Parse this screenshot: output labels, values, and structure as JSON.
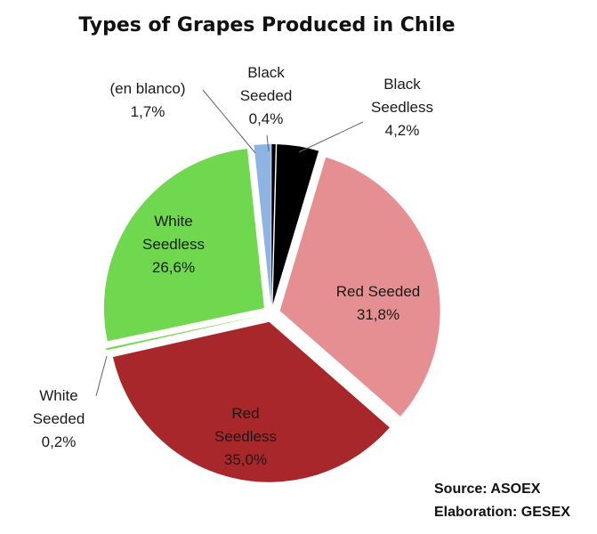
{
  "chart_data": {
    "type": "pie",
    "title": "Types of Grapes Produced in Chile",
    "exploded": true,
    "slices": [
      {
        "name": "Black Seedless",
        "value": 4.2,
        "value_label": "4,2%",
        "color": "#000000"
      },
      {
        "name": "Red Seeded",
        "value": 31.8,
        "value_label": "31,8%",
        "color": "#e68f92"
      },
      {
        "name": "Red Seedless",
        "value": 35.0,
        "value_label": "35,0%",
        "color": "#a8272b"
      },
      {
        "name": "White Seeded",
        "value": 0.2,
        "value_label": "0,2%",
        "color": "#6fd84e"
      },
      {
        "name": "White Seedless",
        "value": 26.6,
        "value_label": "26,6%",
        "color": "#6fd84e"
      },
      {
        "name": "(en blanco)",
        "value": 1.7,
        "value_label": "1,7%",
        "color": "#8fb4e3"
      },
      {
        "name": "Black Seeded",
        "value": 0.4,
        "value_label": "0,4%",
        "color": "#000000"
      }
    ]
  },
  "footer": {
    "source": "Source: ASOEX",
    "elaboration": "Elaboration: GESEX"
  }
}
